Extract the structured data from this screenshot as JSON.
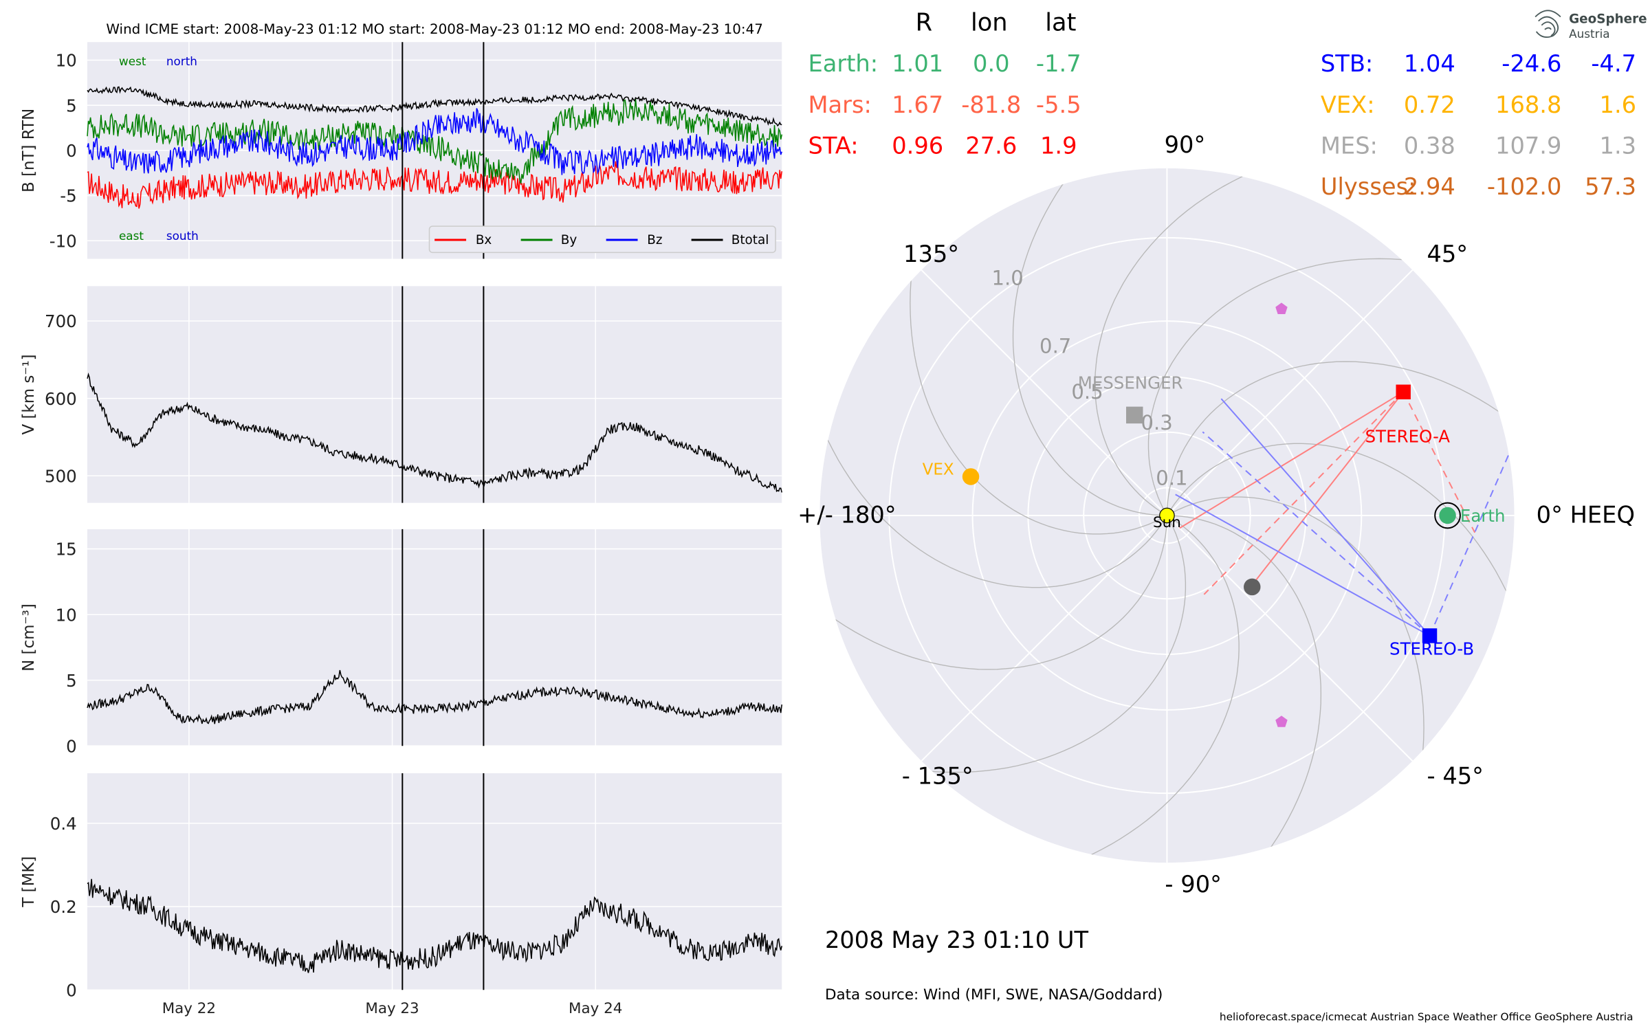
{
  "chart_data": [
    {
      "type": "line",
      "panel": "magnetic-field",
      "title": "Wind    ICME start: 2008-May-23 01:12   MO start: 2008-May-23 01:12   MO end: 2008-May-23 10:47",
      "ylabel": "B [nT] RTN",
      "ylim": [
        -12,
        12
      ],
      "yticks": [
        10,
        5,
        0,
        -5,
        -10
      ],
      "xrange_days": [
        "2008-05-21 12:00",
        "2008-05-24 22:00"
      ],
      "xticks": [
        "May 22",
        "May 23",
        "May 24"
      ],
      "event_lines": [
        "2008-05-23 01:12",
        "2008-05-23 10:47"
      ],
      "annotations": {
        "west": "west",
        "north": "north",
        "east": "east",
        "south": "south"
      },
      "legend": [
        "Bx",
        "By",
        "Bz",
        "Btotal"
      ],
      "series": [
        {
          "name": "Bx",
          "color": "#ff0000",
          "values": [
            -3.5,
            -5.5,
            -4.2,
            -3.8,
            -3.5,
            -4.0,
            -3.2,
            -3.0,
            -3.5,
            -3.2,
            -3.8,
            -4.5,
            -2.5,
            -3.0,
            -3.2,
            -3.5,
            -3.0
          ]
        },
        {
          "name": "By",
          "color": "#008000",
          "values": [
            2.5,
            3.0,
            1.5,
            1.8,
            2.2,
            1.0,
            2.0,
            1.5,
            0.5,
            -1.5,
            -2.5,
            3.5,
            4.0,
            4.5,
            3.0,
            2.0,
            1.5
          ]
        },
        {
          "name": "Bz",
          "color": "#0000ff",
          "values": [
            0.5,
            -1.5,
            -1.0,
            0.5,
            1.0,
            -0.5,
            0.5,
            0.0,
            2.5,
            3.5,
            1.0,
            -1.5,
            -1.0,
            -0.5,
            0.5,
            -0.5,
            0.0
          ]
        },
        {
          "name": "Btotal",
          "color": "#000000",
          "values": [
            6.5,
            6.8,
            5.3,
            5.0,
            5.2,
            4.8,
            4.5,
            4.7,
            5.2,
            5.4,
            5.6,
            5.8,
            6.0,
            5.5,
            4.8,
            3.8,
            3.0
          ]
        }
      ]
    },
    {
      "type": "line",
      "panel": "speed",
      "ylabel": "V [km s⁻¹]",
      "ylim": [
        465,
        745
      ],
      "yticks": [
        700,
        600,
        500
      ],
      "series": [
        {
          "color": "#000000",
          "values": [
            630,
            560,
            540,
            580,
            590,
            575,
            565,
            560,
            550,
            545,
            530,
            525,
            520,
            510,
            500,
            495,
            490,
            500,
            505,
            500,
            510,
            560,
            565,
            550,
            540,
            530,
            510,
            495,
            480
          ]
        }
      ]
    },
    {
      "type": "line",
      "panel": "density",
      "ylabel": "N [cm⁻³]",
      "ylim": [
        0,
        16.5
      ],
      "yticks": [
        15,
        10,
        5,
        0
      ],
      "series": [
        {
          "color": "#000000",
          "values": [
            3.0,
            3.5,
            4.5,
            2.0,
            2.0,
            2.5,
            2.8,
            3.0,
            5.5,
            3.0,
            2.8,
            2.8,
            3.0,
            3.5,
            4.0,
            4.2,
            4.0,
            3.5,
            3.0,
            2.5,
            2.5,
            3.0,
            2.8
          ]
        }
      ]
    },
    {
      "type": "line",
      "panel": "temperature",
      "ylabel": "T [MK]",
      "ylim": [
        0,
        0.52
      ],
      "yticks": [
        0.4,
        0.2,
        0.0
      ],
      "series": [
        {
          "color": "#000000",
          "values": [
            0.25,
            0.22,
            0.2,
            0.15,
            0.12,
            0.1,
            0.08,
            0.06,
            0.1,
            0.08,
            0.07,
            0.08,
            0.12,
            0.1,
            0.09,
            0.11,
            0.2,
            0.18,
            0.15,
            0.1,
            0.09,
            0.12,
            0.1
          ]
        }
      ]
    },
    {
      "type": "scatter",
      "panel": "polar-position-plot",
      "coordinate_system": "HEEQ",
      "angle_labels": [
        "0° HEEQ",
        "45°",
        "90°",
        "135°",
        "+/- 180°",
        "- 135°",
        "- 90°",
        "- 45°"
      ],
      "radial_labels": [
        "0.1",
        "0.3",
        "0.5",
        "0.7",
        "1.0"
      ],
      "bodies": [
        {
          "name": "Sun",
          "r": 0.0,
          "lon": 0.0,
          "color": "#ffff00"
        },
        {
          "name": "Earth",
          "r": 1.01,
          "lon": 0.0,
          "color": "#3cb371"
        },
        {
          "name": "STEREO-A",
          "r": 0.96,
          "lon": 27.6,
          "color": "#ff0000"
        },
        {
          "name": "STEREO-B",
          "r": 1.04,
          "lon": -24.6,
          "color": "#0000ff"
        },
        {
          "name": "VEX",
          "r": 0.72,
          "lon": 168.8,
          "color": "#ffb300"
        },
        {
          "name": "MESSENGER",
          "r": 0.38,
          "lon": 107.9,
          "color": "#a0a0a0"
        },
        {
          "name": "",
          "r": 0.4,
          "lon": -40.0,
          "color": "#606060"
        },
        {
          "name": "",
          "r": 0.85,
          "lon": 61.0,
          "color": "#da70d6"
        },
        {
          "name": "",
          "r": 0.85,
          "lon": -61.0,
          "color": "#da70d6"
        }
      ]
    }
  ],
  "position_table": {
    "headers": [
      "R",
      "lon",
      "lat"
    ],
    "left": [
      {
        "name": "Earth:",
        "r": "1.01",
        "lon": "0.0",
        "lat": "-1.7",
        "color": "#3cb371"
      },
      {
        "name": "Mars:",
        "r": "1.67",
        "lon": "-81.8",
        "lat": "-5.5",
        "color": "#ff6347"
      },
      {
        "name": "STA:",
        "r": "0.96",
        "lon": "27.6",
        "lat": "1.9",
        "color": "#ff0000"
      }
    ],
    "right": [
      {
        "name": "STB:",
        "r": "1.04",
        "lon": "-24.6",
        "lat": "-4.7",
        "color": "#0000ff"
      },
      {
        "name": "VEX:",
        "r": "0.72",
        "lon": "168.8",
        "lat": "1.6",
        "color": "#ffb300"
      },
      {
        "name": "MES:",
        "r": "0.38",
        "lon": "107.9",
        "lat": "1.3",
        "color": "#a9a9a9"
      },
      {
        "name": "Ulysses:",
        "r": "2.94",
        "lon": "-102.0",
        "lat": "57.3",
        "color": "#d2691e"
      }
    ]
  },
  "timestamp": "2008 May 23  01:10 UT",
  "data_source": "Data source: Wind (MFI, SWE, NASA/Goddard)",
  "footer": "helioforecast.space/icmecat   Austrian Space Weather Office   GeoSphere Austria",
  "logo": {
    "line1": "GeoSphere",
    "line2": "Austria"
  }
}
